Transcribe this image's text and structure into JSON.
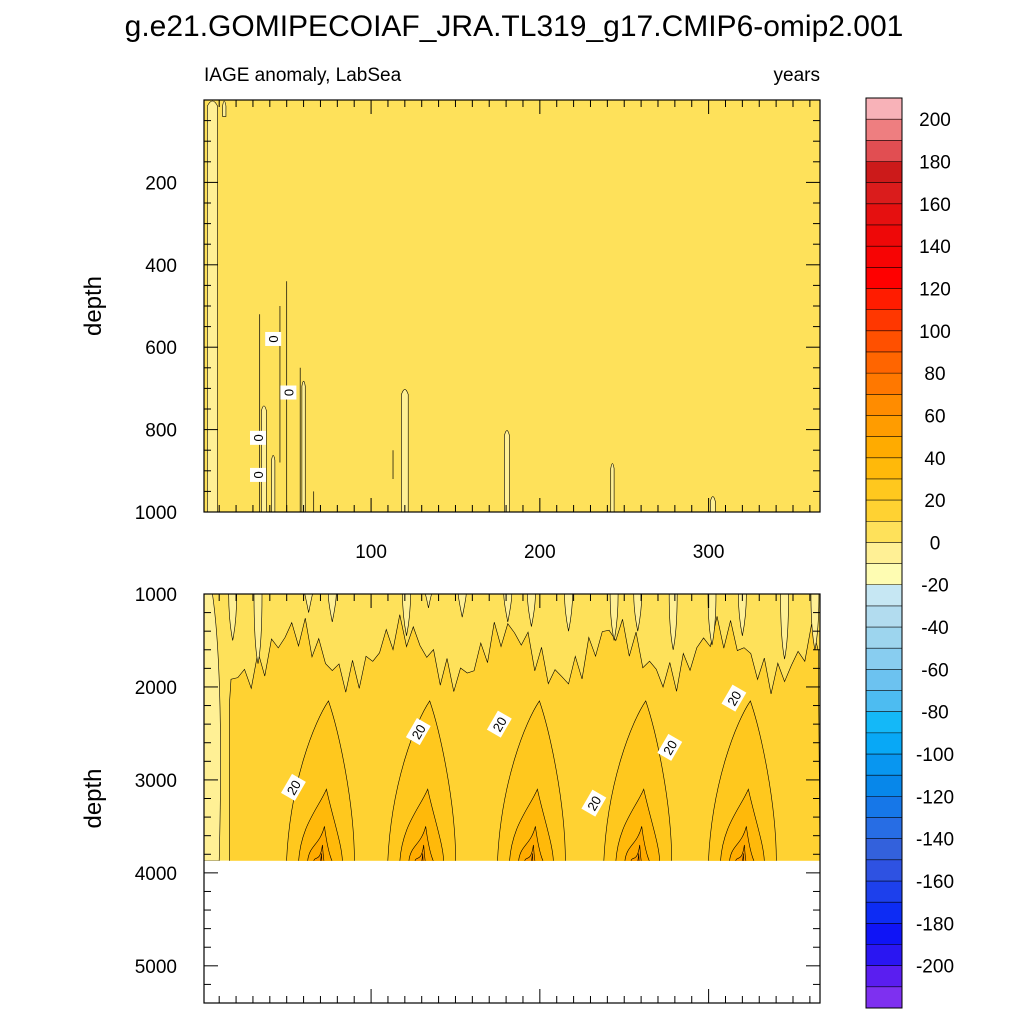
{
  "title": "g.e21.GOMIPECOIAF_JRA.TL319_g17.CMIP6-omip2.001",
  "chart_data": {
    "type": "heatmap",
    "subtitle_left": "IAGE anomaly, LabSea",
    "subtitle_right": "years",
    "x": {
      "range": [
        1,
        366
      ],
      "ticks": [
        100,
        200,
        300
      ],
      "tick_labels": [
        "100",
        "200",
        "300"
      ]
    },
    "panels": [
      {
        "name": "upper",
        "ylabel": "depth",
        "ylim": [
          0,
          1000
        ],
        "yticks": [
          200,
          400,
          600,
          800,
          1000
        ],
        "ytick_labels": [
          "200",
          "400",
          "600",
          "800",
          "1000"
        ],
        "background_level": "0 to 10",
        "negative_streaks": [
          {
            "x": 3,
            "x2": 9,
            "top": 0,
            "bottom": 1000
          },
          {
            "x": 12,
            "x2": 14,
            "top": 0,
            "bottom": 40
          },
          {
            "x": 35,
            "x2": 38,
            "top": 740,
            "bottom": 1000
          },
          {
            "x": 41,
            "x2": 43,
            "top": 860,
            "bottom": 1000
          },
          {
            "x": 59,
            "x2": 61,
            "top": 680,
            "bottom": 1000
          },
          {
            "x": 118,
            "x2": 122,
            "top": 700,
            "bottom": 1000
          },
          {
            "x": 179,
            "x2": 182,
            "top": 800,
            "bottom": 1000
          },
          {
            "x": 242,
            "x2": 244,
            "top": 880,
            "bottom": 1000
          },
          {
            "x": 301,
            "x2": 304,
            "top": 960,
            "bottom": 1000
          }
        ],
        "contour_labels": [
          {
            "text": "0",
            "x": 42,
            "y": 580
          },
          {
            "text": "0",
            "x": 51,
            "y": 710
          },
          {
            "text": "0",
            "x": 33,
            "y": 820
          },
          {
            "text": "0",
            "x": 33,
            "y": 910
          }
        ]
      },
      {
        "name": "lower",
        "ylabel": "depth",
        "ylim": [
          1000,
          5400
        ],
        "yticks": [
          1000,
          2000,
          3000,
          4000,
          5000
        ],
        "ytick_labels": [
          "1000",
          "2000",
          "3000",
          "4000",
          "5000"
        ],
        "data_bottom": 3870,
        "maxima": [
          {
            "x": 70,
            "depth": 3850,
            "peak": 30
          },
          {
            "x": 130,
            "depth": 3850,
            "peak": 35
          },
          {
            "x": 195,
            "depth": 3850,
            "peak": 32
          },
          {
            "x": 258,
            "depth": 3850,
            "peak": 32
          },
          {
            "x": 320,
            "depth": 3850,
            "peak": 35
          }
        ],
        "contour_labels": [
          {
            "text": "20",
            "x": 54,
            "y": 3080
          },
          {
            "text": "20",
            "x": 128,
            "y": 2480
          },
          {
            "text": "20",
            "x": 176,
            "y": 2400
          },
          {
            "text": "20",
            "x": 232,
            "y": 3250
          },
          {
            "text": "20",
            "x": 277,
            "y": 2650
          },
          {
            "text": "20",
            "x": 315,
            "y": 2120
          }
        ]
      }
    ],
    "colorbar": {
      "levels": [
        -210,
        -200,
        -190,
        -180,
        -170,
        -160,
        -150,
        -140,
        -130,
        -120,
        -110,
        -100,
        -90,
        -80,
        -70,
        -60,
        -50,
        -40,
        -30,
        -20,
        -10,
        0,
        10,
        20,
        30,
        40,
        50,
        60,
        70,
        80,
        90,
        100,
        110,
        120,
        130,
        140,
        150,
        160,
        170,
        180,
        190,
        200,
        210
      ],
      "tick_labels": [
        "200",
        "180",
        "160",
        "140",
        "120",
        "100",
        "80",
        "60",
        "40",
        "20",
        "0",
        "-20",
        "-40",
        "-60",
        "-80",
        "-100",
        "-120",
        "-140",
        "-160",
        "-180",
        "-200"
      ],
      "colors_top_to_bottom": [
        "#f8b2b8",
        "#ee7e80",
        "#e14e52",
        "#cc1a1a",
        "#da1c1c",
        "#e51010",
        "#ee0808",
        "#f70404",
        "#ff0000",
        "#ff1c00",
        "#ff3700",
        "#ff5000",
        "#ff6500",
        "#ff7800",
        "#ff8c00",
        "#ff9c00",
        "#ffab00",
        "#ffb90a",
        "#ffc81e",
        "#ffd232",
        "#fee15a",
        "#fff095",
        "#fefcb2",
        "#c6e7f3",
        "#b2dcef",
        "#9dd5ee",
        "#88cdf0",
        "#6cc2f0",
        "#4dbcf1",
        "#14b8f8",
        "#08a8f6",
        "#0896f0",
        "#0787ea",
        "#1677e8",
        "#276de4",
        "#3361dc",
        "#2e52e2",
        "#1d40ec",
        "#0d2cf4",
        "#0f14f6",
        "#2a16f2",
        "#5a1ef0",
        "#7e30f0"
      ]
    }
  }
}
